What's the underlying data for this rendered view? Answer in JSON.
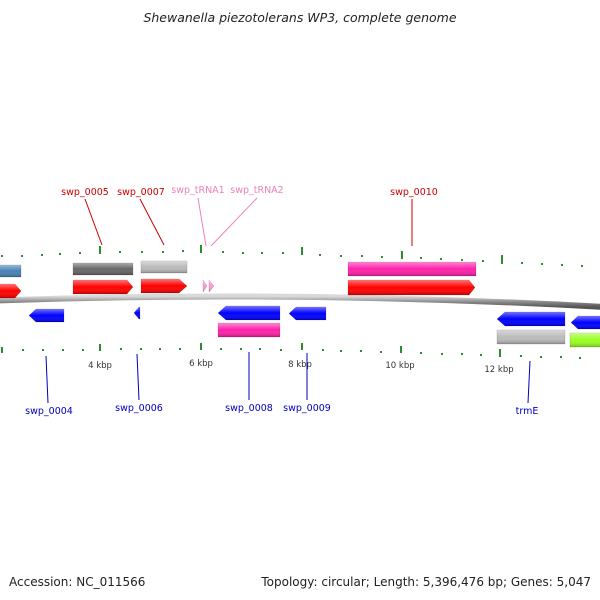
{
  "title": "Shewanella piezotolerans WP3, complete genome",
  "footer": {
    "accession": "Accession: NC_011566",
    "summary": "Topology: circular; Length: 5,396,476 bp; Genes: 5,047"
  },
  "colors": {
    "background": "#ffffff",
    "backbone": "#8c8c8c",
    "tick": "#2e8b2e",
    "forward_label": "#cc0000",
    "reverse_label": "#0000bb",
    "trna_label": "#ee82bb",
    "cds": "#ff0000",
    "cds_reverse": "#0000ff",
    "trna": "#ff99cc",
    "gene_dark_gray": "#666666",
    "gene_light_gray": "#bbbbbb",
    "gene_steel_blue": "#4682b4",
    "gene_magenta": "#ff22aa",
    "gene_lime": "#99ff22"
  },
  "scale": {
    "unit": "kbp",
    "major_labels": [
      {
        "text": "4 kbp",
        "kbp": 4
      },
      {
        "text": "6 kbp",
        "kbp": 6
      },
      {
        "text": "8 kbp",
        "kbp": 8
      },
      {
        "text": "10 kbp",
        "kbp": 10
      },
      {
        "text": "12 kbp",
        "kbp": 12
      }
    ]
  },
  "labels": {
    "forward": [
      {
        "text": "swp_0005",
        "kind": "gene"
      },
      {
        "text": "swp_0007",
        "kind": "gene"
      },
      {
        "text": "swp_tRNA1",
        "kind": "trna"
      },
      {
        "text": "swp_tRNA2",
        "kind": "trna"
      },
      {
        "text": "swp_0010",
        "kind": "gene"
      }
    ],
    "reverse": [
      {
        "text": "swp_0004"
      },
      {
        "text": "swp_0006"
      },
      {
        "text": "swp_0008"
      },
      {
        "text": "swp_0009"
      },
      {
        "text": "trmE"
      }
    ]
  },
  "features": {
    "forward_outer": [
      {
        "color": "gene_steel_blue"
      },
      {
        "color": "gene_dark_gray"
      },
      {
        "color": "gene_light_gray"
      },
      {
        "color": "gene_magenta"
      }
    ],
    "forward_inner": [
      {
        "color": "cds"
      },
      {
        "color": "cds"
      },
      {
        "color": "cds"
      },
      {
        "color": "trna"
      },
      {
        "color": "trna"
      },
      {
        "color": "cds"
      }
    ],
    "reverse_inner": [
      {
        "color": "cds_reverse"
      },
      {
        "color": "cds_reverse"
      },
      {
        "color": "cds_reverse"
      },
      {
        "color": "cds_reverse"
      },
      {
        "color": "cds_reverse"
      },
      {
        "color": "cds_reverse"
      }
    ],
    "reverse_outer": [
      {
        "color": "gene_magenta"
      },
      {
        "color": "gene_light_gray"
      },
      {
        "color": "gene_lime"
      }
    ]
  }
}
